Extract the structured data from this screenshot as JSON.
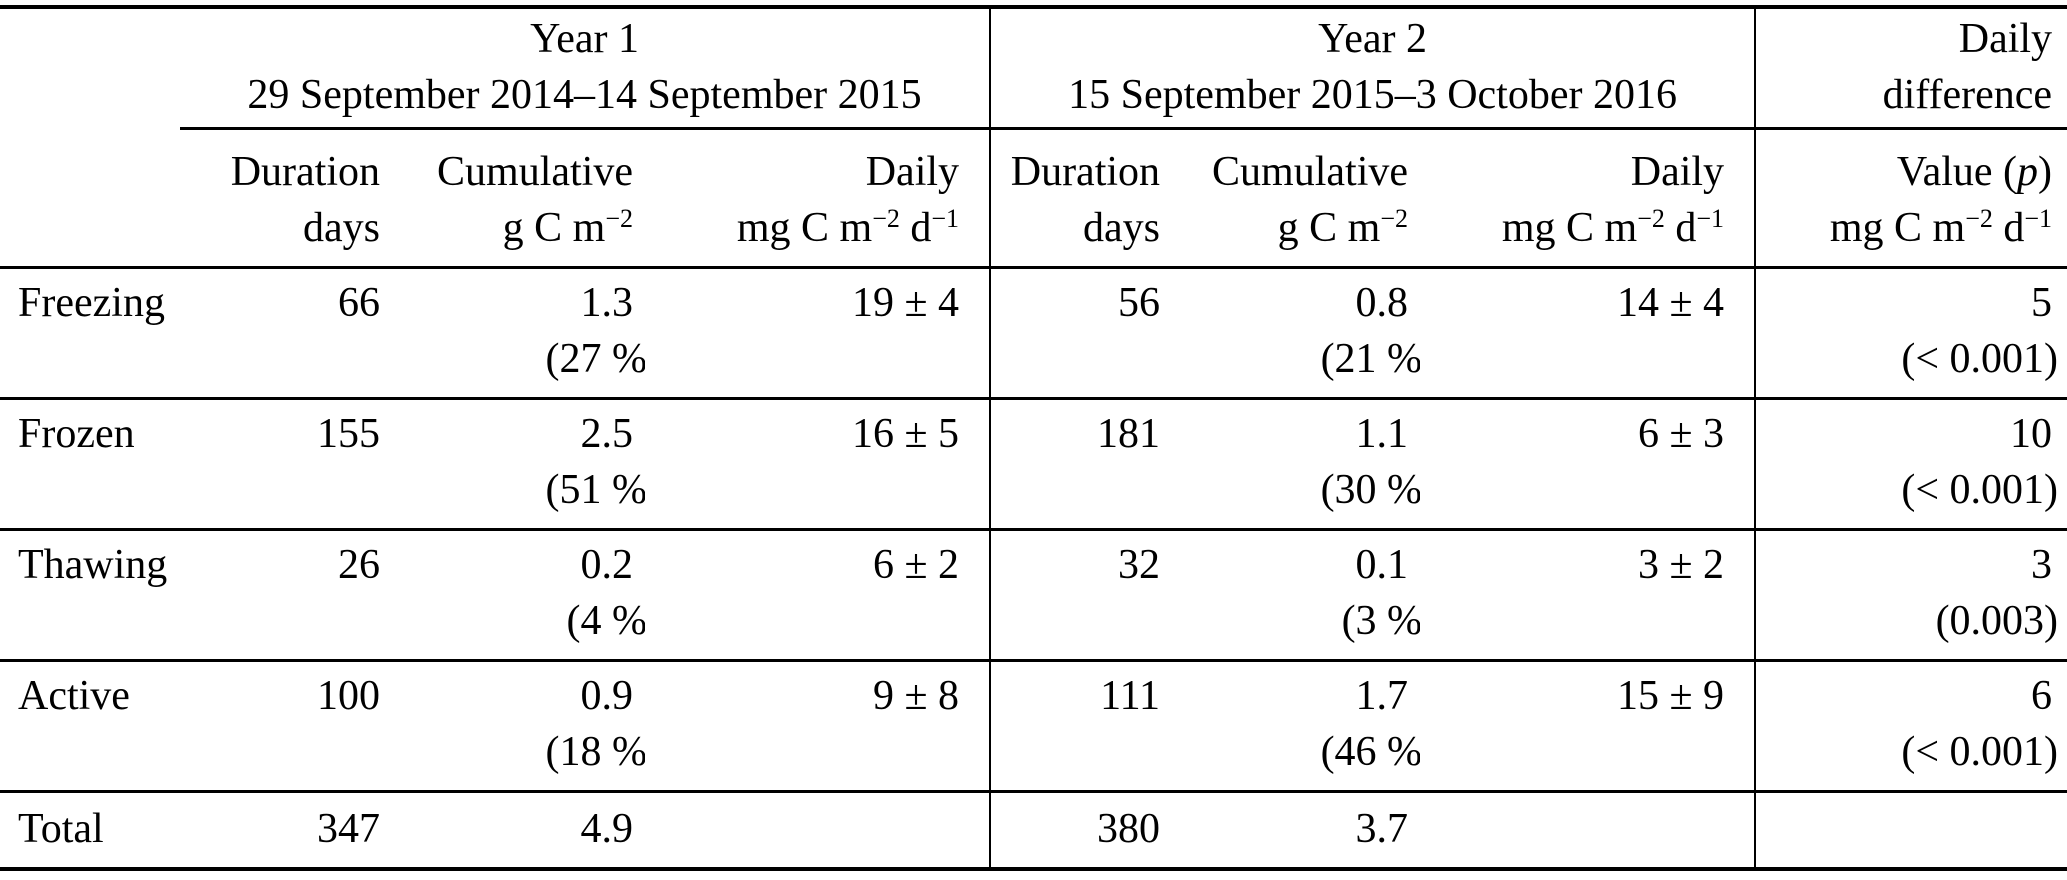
{
  "table": {
    "groups": [
      {
        "title": "Year 1",
        "subtitle": "29 September 2014–14 September 2015"
      },
      {
        "title": "Year 2",
        "subtitle": "15 September 2015–3 October 2016"
      },
      {
        "title": "Daily",
        "subtitle": "difference"
      }
    ],
    "columns": {
      "duration_label": "Duration",
      "duration_unit": "days",
      "cumulative_label": "Cumulative",
      "cumulative_unit": "g C m^{−2}",
      "daily_label": "Daily",
      "daily_unit": "mg C m^{−2} d^{−1}",
      "diff_label": "Value (*p*)",
      "diff_unit": "mg C m^{−2} d^{−1}"
    },
    "rows": [
      {
        "label": "Freezing",
        "y1": {
          "duration": "66",
          "cumulative": "1.3",
          "cumulative_pct": "(27 %)",
          "daily": "19 ± 4"
        },
        "y2": {
          "duration": "56",
          "cumulative": "0.8",
          "cumulative_pct": "(21 %)",
          "daily": "14 ± 4"
        },
        "diff": {
          "value": "5",
          "p": "(< 0.001)"
        }
      },
      {
        "label": "Frozen",
        "y1": {
          "duration": "155",
          "cumulative": "2.5",
          "cumulative_pct": "(51 %)",
          "daily": "16 ± 5"
        },
        "y2": {
          "duration": "181",
          "cumulative": "1.1",
          "cumulative_pct": "(30 %)",
          "daily": "6 ± 3"
        },
        "diff": {
          "value": "10",
          "p": "(< 0.001)"
        }
      },
      {
        "label": "Thawing",
        "y1": {
          "duration": "26",
          "cumulative": "0.2",
          "cumulative_pct": "(4 %)",
          "daily": "6 ± 2"
        },
        "y2": {
          "duration": "32",
          "cumulative": "0.1",
          "cumulative_pct": "(3 %)",
          "daily": "3 ± 2"
        },
        "diff": {
          "value": "3",
          "p": "(0.003)"
        }
      },
      {
        "label": "Active",
        "y1": {
          "duration": "100",
          "cumulative": "0.9",
          "cumulative_pct": "(18 %)",
          "daily": "9 ± 8"
        },
        "y2": {
          "duration": "111",
          "cumulative": "1.7",
          "cumulative_pct": "(46 %)",
          "daily": "15 ± 9"
        },
        "diff": {
          "value": "6",
          "p": "(< 0.001)"
        }
      }
    ],
    "total": {
      "label": "Total",
      "y1_duration": "347",
      "y1_cumulative": "4.9",
      "y2_duration": "380",
      "y2_cumulative": "3.7"
    }
  }
}
